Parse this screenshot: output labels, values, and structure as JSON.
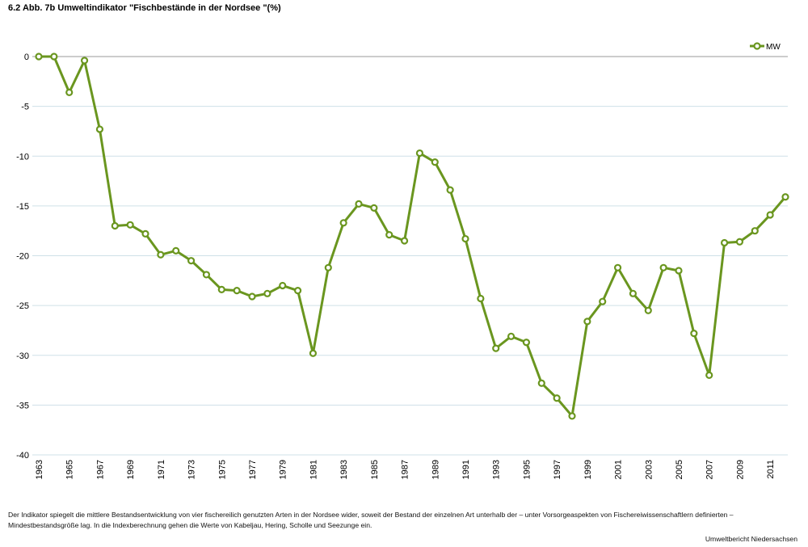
{
  "chart_data": {
    "type": "line",
    "title": "6.2 Abb. 7b  Umweltindikator \"Fischbestände in der Nordsee \"(%)",
    "xlabel": "",
    "ylabel": "",
    "ylim": [
      -40,
      0
    ],
    "yticks": [
      0,
      -5,
      -10,
      -15,
      -20,
      -25,
      -30,
      -35,
      -40
    ],
    "xticks": [
      1963,
      1965,
      1967,
      1969,
      1971,
      1973,
      1975,
      1977,
      1979,
      1981,
      1983,
      1985,
      1987,
      1989,
      1991,
      1993,
      1995,
      1997,
      1999,
      2001,
      2003,
      2005,
      2007,
      2009,
      2011
    ],
    "grid": true,
    "legend_position": "top-right",
    "x": [
      1963,
      1964,
      1965,
      1966,
      1967,
      1968,
      1969,
      1970,
      1971,
      1972,
      1973,
      1974,
      1975,
      1976,
      1977,
      1978,
      1979,
      1980,
      1981,
      1982,
      1983,
      1984,
      1985,
      1986,
      1987,
      1988,
      1989,
      1990,
      1991,
      1992,
      1993,
      1994,
      1995,
      1996,
      1997,
      1998,
      1999,
      2000,
      2001,
      2002,
      2003,
      2004,
      2005,
      2006,
      2007,
      2008,
      2009,
      2010,
      2011,
      2012
    ],
    "series": [
      {
        "name": "MW",
        "color": "#6a961f",
        "values": [
          0,
          0,
          -3.6,
          -0.4,
          -7.3,
          -17.0,
          -16.9,
          -17.8,
          -19.9,
          -19.5,
          -20.5,
          -21.9,
          -23.4,
          -23.5,
          -24.1,
          -23.8,
          -23.0,
          -23.5,
          -29.8,
          -21.2,
          -16.7,
          -14.8,
          -15.2,
          -17.9,
          -18.5,
          -9.7,
          -10.6,
          -13.4,
          -18.3,
          -24.3,
          -29.3,
          -28.1,
          -28.7,
          -32.8,
          -34.3,
          -36.1,
          -26.6,
          -24.6,
          -21.2,
          -23.8,
          -25.5,
          -21.2,
          -21.5,
          -27.8,
          -32.0,
          -18.7,
          -18.6,
          -17.5,
          -15.9,
          -14.1
        ]
      }
    ]
  },
  "note": "Der Indikator spiegelt die mittlere Bestandsentwicklung von vier fischereilich genutzten Arten in der Nordsee wider, soweit der Bestand der einzelnen Art unterhalb der – unter Vorsorgeaspekten von Fischereiwissenschaftlern definierten – Mindestbestandsgröße lag. In die Indexberechnung gehen die Werte von Kabeljau, Hering, Scholle und Seezunge ein.",
  "source": "Umweltbericht Niedersachsen"
}
